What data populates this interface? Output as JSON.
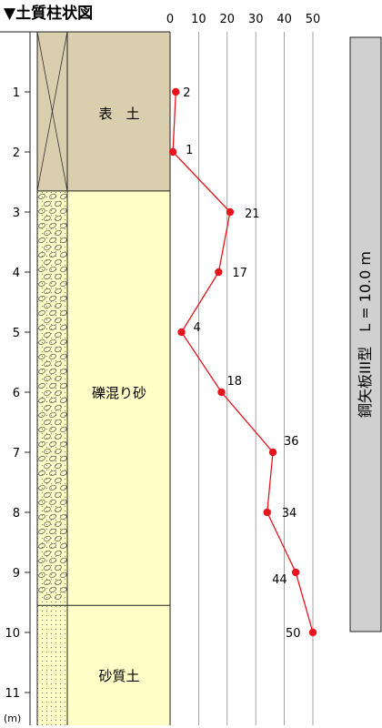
{
  "title": "▼土質柱状図",
  "depth_unit": "(m)",
  "depth_ticks": [
    "1",
    "2",
    "3",
    "4",
    "5",
    "6",
    "7",
    "8",
    "9",
    "10",
    "11"
  ],
  "layers": [
    {
      "name": "表　土",
      "top": 0,
      "bottom": 2.65,
      "color": "#d9ceae",
      "pattern": "cross"
    },
    {
      "name": "礫混り砂",
      "top": 2.65,
      "bottom": 9.55,
      "color": "#ffffc7",
      "pattern": "gravel"
    },
    {
      "name": "砂質土",
      "top": 9.55,
      "bottom": 11.55,
      "color": "#ffffc7",
      "pattern": "dots"
    }
  ],
  "pile_label": "鋼矢板III型　L = 10.0 m",
  "chart_data": {
    "type": "line",
    "xlabel": "",
    "ylabel": "",
    "x_ticks": [
      "0",
      "10",
      "20",
      "30",
      "40",
      "50"
    ],
    "xlim": [
      0,
      50
    ],
    "ylim": [
      0,
      11.55
    ],
    "color": "#e8141c",
    "points": [
      {
        "depth": 1.0,
        "n": 2,
        "label": "2"
      },
      {
        "depth": 2.0,
        "n": 1,
        "label": "1"
      },
      {
        "depth": 3.0,
        "n": 21,
        "label": "21"
      },
      {
        "depth": 4.0,
        "n": 17,
        "label": "17"
      },
      {
        "depth": 5.0,
        "n": 4,
        "label": "4"
      },
      {
        "depth": 6.0,
        "n": 18,
        "label": "18"
      },
      {
        "depth": 7.0,
        "n": 36,
        "label": "36"
      },
      {
        "depth": 8.0,
        "n": 34,
        "label": "34"
      },
      {
        "depth": 9.0,
        "n": 44,
        "label": "44"
      },
      {
        "depth": 10.0,
        "n": 50,
        "label": "50"
      }
    ]
  }
}
